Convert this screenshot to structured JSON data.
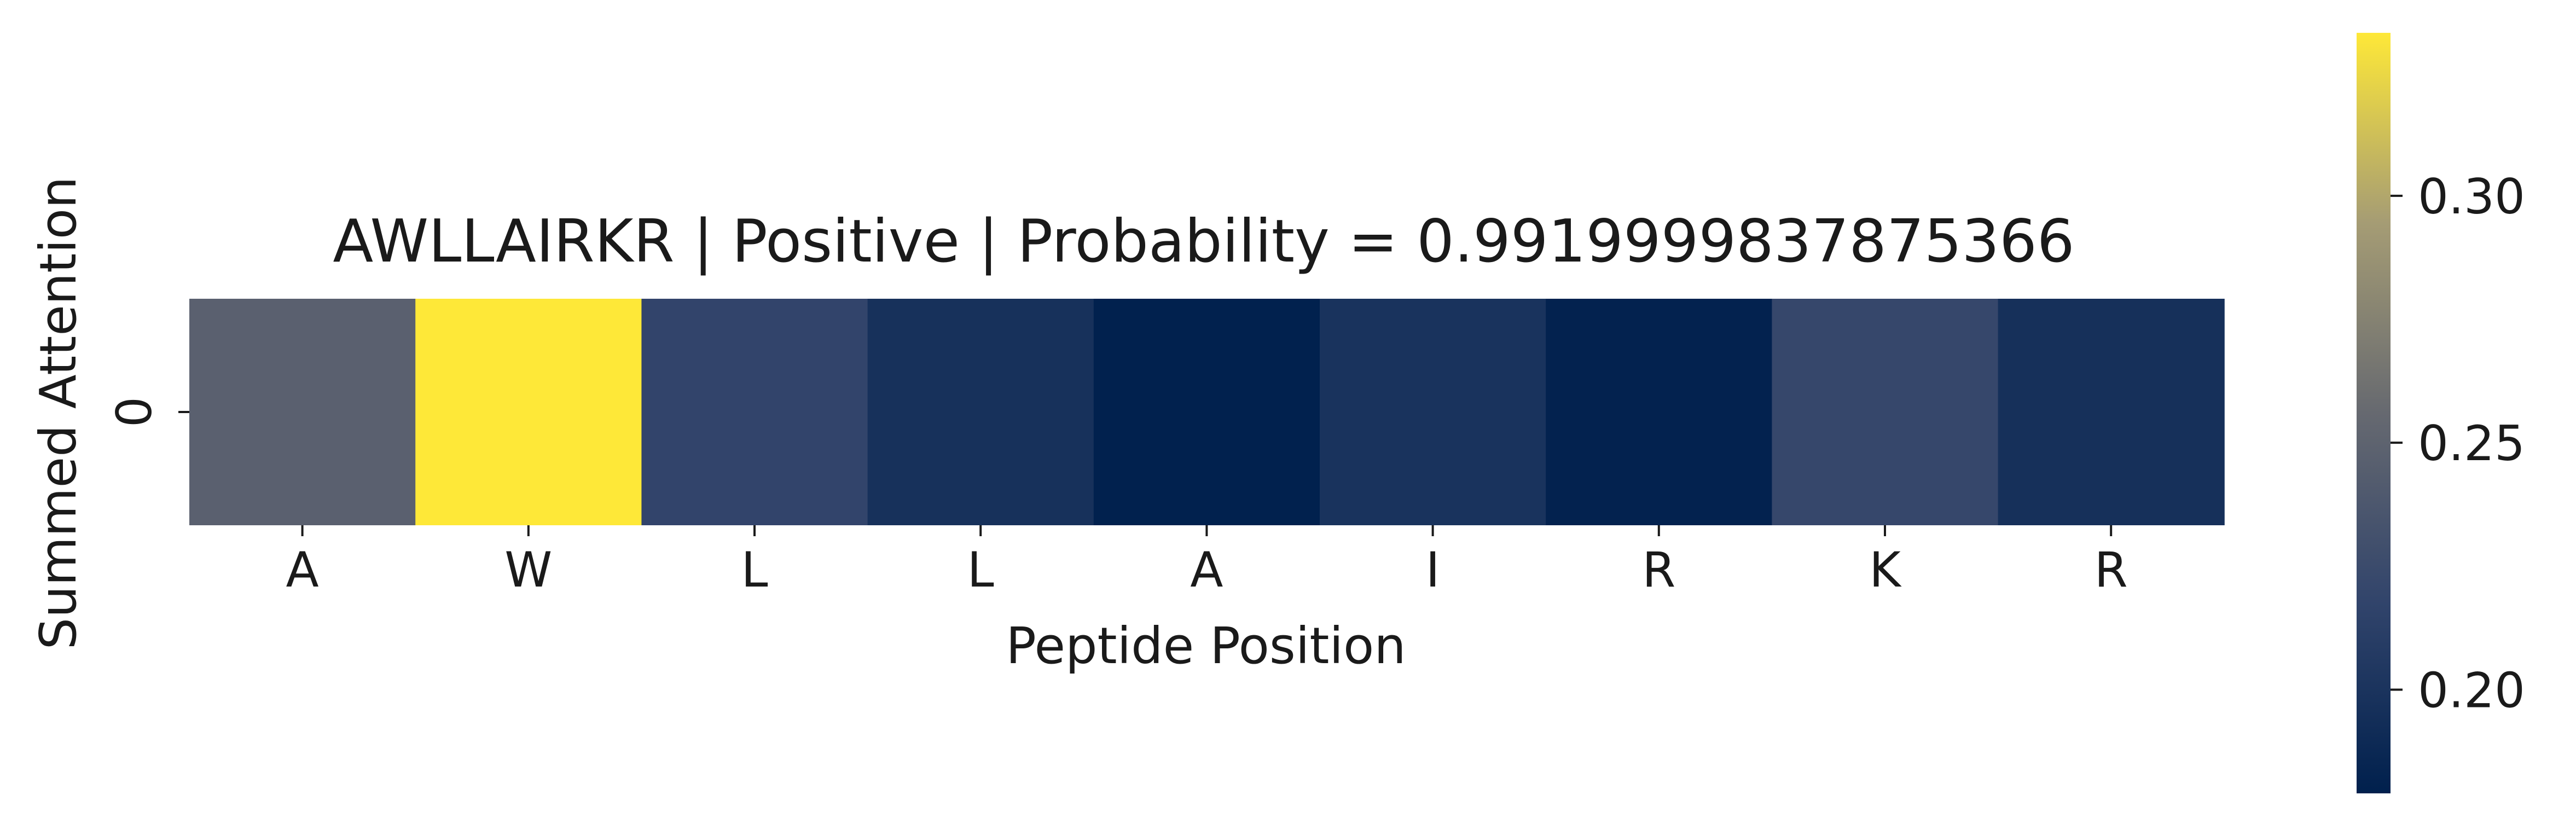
{
  "chart_data": {
    "type": "heatmap",
    "title": "AWLLAIRKR | Positive | Probability = 0.9919999837875366",
    "xlabel": "Peptide Position",
    "ylabel": "Summed Attention",
    "x_categories": [
      "A",
      "W",
      "L",
      "L",
      "A",
      "I",
      "R",
      "K",
      "R"
    ],
    "y_categories": [
      "0"
    ],
    "values": [
      [
        0.247,
        0.333,
        0.218,
        0.197,
        0.18,
        0.199,
        0.181,
        0.221,
        0.196
      ]
    ],
    "colormap": "cividis",
    "colorbar": {
      "range": [
        0.179,
        0.333
      ],
      "ticks": [
        0.2,
        0.25,
        0.3
      ],
      "tick_labels": [
        "0.20",
        "0.25",
        "0.30"
      ]
    }
  }
}
